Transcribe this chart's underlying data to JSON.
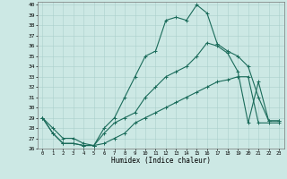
{
  "title": "",
  "xlabel": "Humidex (Indice chaleur)",
  "bg_color": "#cce8e4",
  "line_color": "#1a6b5a",
  "grid_color": "#aacfcc",
  "xlim": [
    -0.5,
    23.5
  ],
  "ylim": [
    26,
    40.3
  ],
  "yticks": [
    26,
    27,
    28,
    29,
    30,
    31,
    32,
    33,
    34,
    35,
    36,
    37,
    38,
    39,
    40
  ],
  "xticks": [
    0,
    1,
    2,
    3,
    4,
    5,
    6,
    7,
    8,
    9,
    10,
    11,
    12,
    13,
    14,
    15,
    16,
    17,
    18,
    19,
    20,
    21,
    22,
    23
  ],
  "line1": {
    "x": [
      0,
      1,
      2,
      3,
      4,
      5,
      6,
      7,
      8,
      9,
      10,
      11,
      12,
      13,
      14,
      15,
      16,
      17,
      18,
      19,
      20,
      21,
      22,
      23
    ],
    "y": [
      29,
      27.5,
      26.5,
      26.5,
      26.3,
      26.3,
      26.5,
      27,
      27.5,
      28.5,
      29,
      29.5,
      30,
      30.5,
      31,
      31.5,
      32,
      32.5,
      32.7,
      33,
      33,
      28.5,
      28.5,
      28.5
    ]
  },
  "line2": {
    "x": [
      0,
      1,
      2,
      3,
      4,
      5,
      6,
      7,
      8,
      9,
      10,
      11,
      12,
      13,
      14,
      15,
      16,
      17,
      18,
      19,
      20,
      21,
      22,
      23
    ],
    "y": [
      29,
      28,
      27,
      27,
      26.5,
      26.3,
      27.5,
      28.5,
      29,
      29.5,
      31,
      32,
      33,
      33.5,
      34,
      35,
      36.3,
      36,
      35.3,
      33.5,
      28.5,
      32.5,
      28.7,
      28.7
    ]
  },
  "line3": {
    "x": [
      0,
      1,
      2,
      3,
      4,
      5,
      6,
      7,
      8,
      9,
      10,
      11,
      12,
      13,
      14,
      15,
      16,
      17,
      18,
      19,
      20,
      21,
      22,
      23
    ],
    "y": [
      29,
      27.5,
      26.5,
      26.5,
      26.3,
      26.3,
      28,
      29,
      31,
      33,
      35,
      35.5,
      38.5,
      38.8,
      38.5,
      40,
      39.2,
      36.2,
      35.5,
      35,
      34,
      31,
      28.7,
      28.7
    ]
  }
}
